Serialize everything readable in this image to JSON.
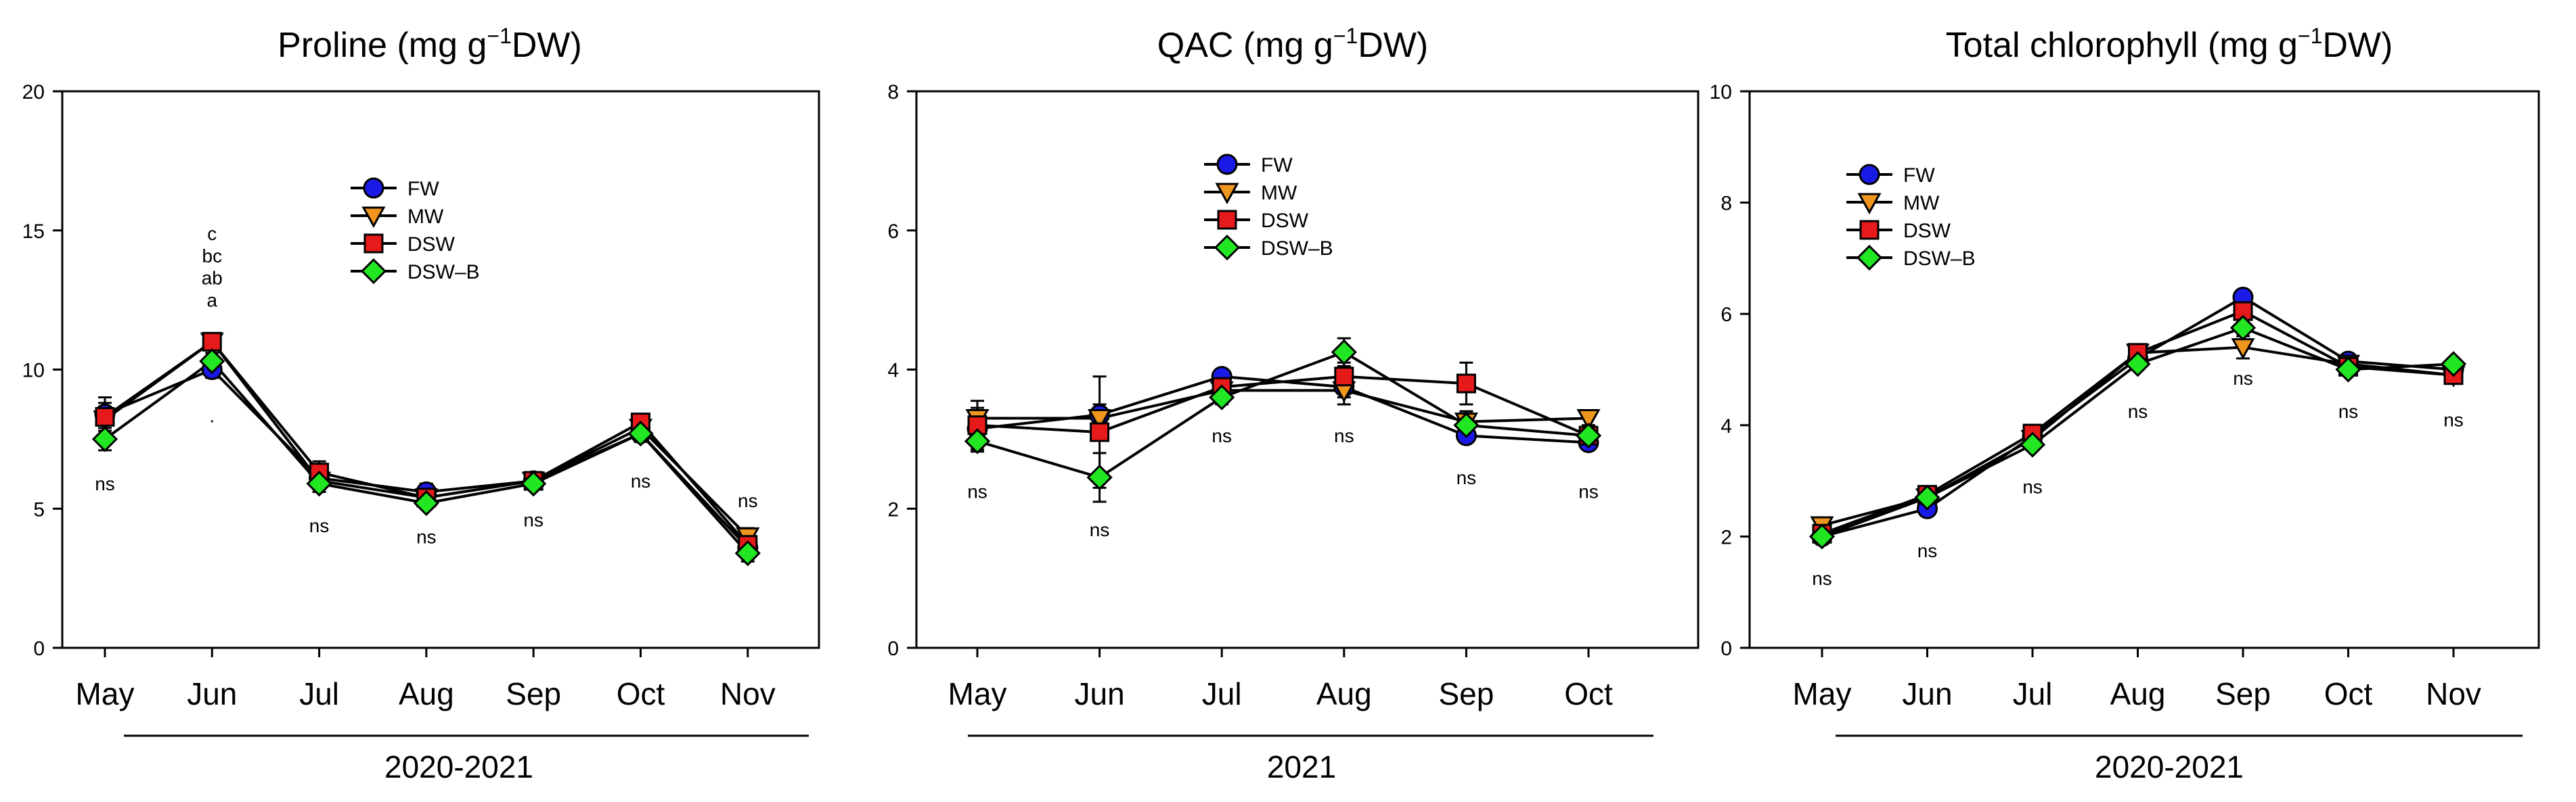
{
  "chart_data": [
    {
      "type": "line",
      "title": "Proline (mg g⁻¹DW)",
      "title_parts": {
        "main": "Proline (mg g",
        "sup": "−1",
        "tail": "DW)"
      },
      "categories": [
        "May",
        "Jun",
        "Jul",
        "Aug",
        "Sep",
        "Oct",
        "Nov"
      ],
      "period_label": "2020-2021",
      "ylim": [
        0,
        20
      ],
      "yticks": [
        "0",
        "5",
        "10",
        "15",
        "20"
      ],
      "series": [
        {
          "name": "FW",
          "marker": "circle",
          "color": "#1a1ae6",
          "values": [
            8.4,
            10.0,
            6.1,
            5.6,
            6.0,
            7.7,
            3.6
          ],
          "errors": [
            0.6,
            0.3,
            0.4,
            0.3,
            0.2,
            0.3,
            0.3
          ]
        },
        {
          "name": "MW",
          "marker": "triangle-down",
          "color": "#f0961e",
          "values": [
            8.2,
            11.0,
            6.0,
            5.4,
            6.0,
            7.9,
            4.0
          ],
          "errors": [
            0.4,
            0.3,
            0.3,
            0.2,
            0.2,
            0.3,
            0.3
          ]
        },
        {
          "name": "DSW",
          "marker": "square",
          "color": "#e61a1a",
          "values": [
            8.3,
            11.0,
            6.3,
            5.4,
            6.0,
            8.1,
            3.7
          ],
          "errors": [
            0.5,
            0.3,
            0.4,
            0.3,
            0.2,
            0.3,
            0.3
          ]
        },
        {
          "name": "DSW–B",
          "marker": "diamond",
          "color": "#22e622",
          "values": [
            7.5,
            10.3,
            5.9,
            5.2,
            5.9,
            7.7,
            3.4
          ],
          "errors": [
            0.4,
            0.3,
            0.3,
            0.2,
            0.2,
            0.3,
            0.3
          ]
        }
      ],
      "annotations": [
        {
          "category": "May",
          "text": "ns",
          "y": 5.9
        },
        {
          "category": "Jun",
          "text": "·",
          "y": 8.2
        },
        {
          "category": "Jul",
          "text": "ns",
          "y": 4.4
        },
        {
          "category": "Aug",
          "text": "ns",
          "y": 4.0
        },
        {
          "category": "Sep",
          "text": "ns",
          "y": 4.6
        },
        {
          "category": "Oct",
          "text": "ns",
          "y": 6.0
        },
        {
          "category": "Nov",
          "text": "ns",
          "y": 5.3
        }
      ],
      "letters": {
        "category": "Jun",
        "texts": [
          "c",
          "bc",
          "ab",
          "a"
        ],
        "y": [
          14.9,
          14.1,
          13.3,
          12.5
        ]
      },
      "legend_position": "top-center"
    },
    {
      "type": "line",
      "title": "QAC (mg g⁻¹DW)",
      "title_parts": {
        "main": "QAC (mg g",
        "sup": "−1",
        "tail": "DW)"
      },
      "categories": [
        "May",
        "Jun",
        "Jul",
        "Aug",
        "Sep",
        "Oct"
      ],
      "period_label": "2021",
      "ylim": [
        0,
        8
      ],
      "yticks": [
        "0",
        "2",
        "4",
        "6",
        "8"
      ],
      "series": [
        {
          "name": "FW",
          "marker": "circle",
          "color": "#1a1ae6",
          "values": [
            3.15,
            3.35,
            3.9,
            3.75,
            3.05,
            2.95
          ],
          "errors": [
            0.15,
            0.15,
            0.1,
            0.15,
            0.1,
            0.1
          ]
        },
        {
          "name": "MW",
          "marker": "triangle-down",
          "color": "#f0961e",
          "values": [
            3.3,
            3.3,
            3.7,
            3.7,
            3.25,
            3.3
          ],
          "errors": [
            0.15,
            0.15,
            0.1,
            0.2,
            0.15,
            0.1
          ]
        },
        {
          "name": "DSW",
          "marker": "square",
          "color": "#e61a1a",
          "values": [
            3.2,
            3.1,
            3.75,
            3.9,
            3.8,
            3.05
          ],
          "errors": [
            0.35,
            0.8,
            0.1,
            0.2,
            0.3,
            0.1
          ]
        },
        {
          "name": "DSW–B",
          "marker": "diamond",
          "color": "#22e622",
          "values": [
            2.97,
            2.45,
            3.6,
            4.25,
            3.2,
            3.05
          ],
          "errors": [
            0.15,
            0.35,
            0.1,
            0.2,
            0.2,
            0.1
          ]
        }
      ],
      "annotations": [
        {
          "category": "May",
          "text": "ns",
          "y": 2.25
        },
        {
          "category": "Jun",
          "text": "ns",
          "y": 1.7
        },
        {
          "category": "Jul",
          "text": "ns",
          "y": 3.05
        },
        {
          "category": "Aug",
          "text": "ns",
          "y": 3.05
        },
        {
          "category": "Sep",
          "text": "ns",
          "y": 2.45
        },
        {
          "category": "Oct",
          "text": "ns",
          "y": 2.25
        }
      ],
      "legend_position": "top-center"
    },
    {
      "type": "line",
      "title": "Total chlorophyll (mg g⁻¹DW)",
      "title_parts": {
        "main": "Total chlorophyll (mg g",
        "sup": "−1",
        "tail": "DW)"
      },
      "categories": [
        "May",
        "Jun",
        "Jul",
        "Aug",
        "Sep",
        "Oct",
        "Nov"
      ],
      "period_label": "2020-2021",
      "ylim": [
        0,
        10
      ],
      "yticks": [
        "0",
        "2",
        "4",
        "6",
        "8",
        "10"
      ],
      "series": [
        {
          "name": "FW",
          "marker": "circle",
          "color": "#1a1ae6",
          "values": [
            2.0,
            2.5,
            3.8,
            5.2,
            6.3,
            5.15,
            5.0
          ],
          "errors": [
            0.1,
            0.1,
            0.1,
            0.1,
            0.1,
            0.1,
            0.1
          ]
        },
        {
          "name": "MW",
          "marker": "triangle-down",
          "color": "#f0961e",
          "values": [
            2.2,
            2.7,
            3.75,
            5.3,
            5.4,
            5.1,
            4.9
          ],
          "errors": [
            0.1,
            0.1,
            0.1,
            0.1,
            0.2,
            0.1,
            0.1
          ]
        },
        {
          "name": "DSW",
          "marker": "square",
          "color": "#e61a1a",
          "values": [
            2.05,
            2.75,
            3.85,
            5.3,
            6.05,
            5.05,
            4.9
          ],
          "errors": [
            0.1,
            0.1,
            0.1,
            0.1,
            0.1,
            0.1,
            0.1
          ]
        },
        {
          "name": "DSW–B",
          "marker": "diamond",
          "color": "#22e622",
          "values": [
            2.0,
            2.7,
            3.65,
            5.1,
            5.75,
            5.0,
            5.1
          ],
          "errors": [
            0.1,
            0.1,
            0.1,
            0.1,
            0.15,
            0.1,
            0.1
          ]
        }
      ],
      "annotations": [
        {
          "category": "May",
          "text": "ns",
          "y": 1.25
        },
        {
          "category": "Jun",
          "text": "ns",
          "y": 1.75
        },
        {
          "category": "Jul",
          "text": "ns",
          "y": 2.9
        },
        {
          "category": "Aug",
          "text": "ns",
          "y": 4.25
        },
        {
          "category": "Sep",
          "text": "ns",
          "y": 4.85
        },
        {
          "category": "Oct",
          "text": "ns",
          "y": 4.25
        },
        {
          "category": "Nov",
          "text": "ns",
          "y": 4.1
        }
      ],
      "legend_position": "top-left"
    }
  ]
}
